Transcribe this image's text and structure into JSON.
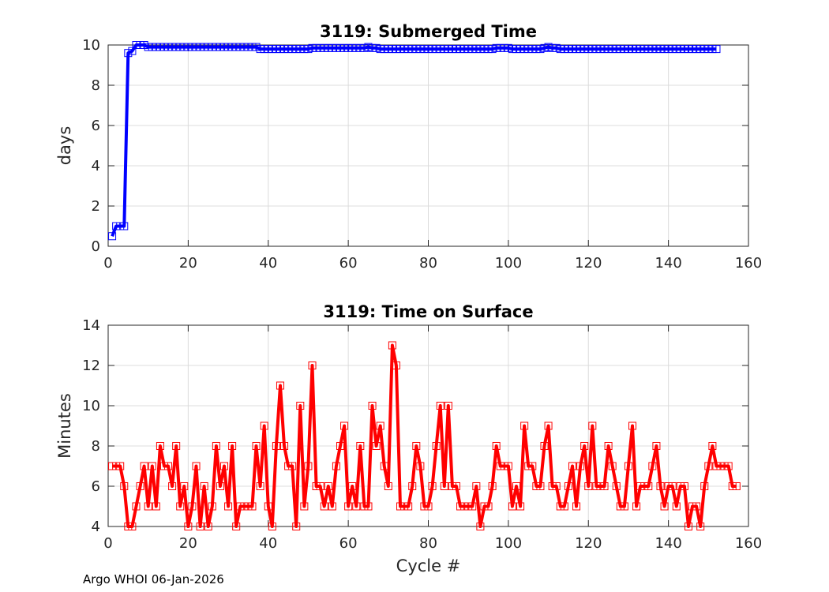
{
  "footer": "Argo WHOI 06-Jan-2026",
  "chart_data": [
    {
      "type": "line",
      "title": "3119: Submerged Time",
      "xlabel": "",
      "ylabel": "days",
      "xlim": [
        0,
        160
      ],
      "ylim": [
        0,
        10
      ],
      "xticks": [
        0,
        20,
        40,
        60,
        80,
        100,
        120,
        140,
        160
      ],
      "yticks": [
        0,
        2,
        4,
        6,
        8,
        10
      ],
      "grid": true,
      "color": "#0000ff",
      "marker": "square",
      "series": [
        {
          "name": "Submerged Time",
          "values": [
            0.5,
            1.0,
            1.0,
            1.0,
            9.6,
            9.7,
            10.0,
            10.0,
            10.0,
            9.9,
            9.9,
            9.9,
            9.9,
            9.9,
            9.9,
            9.9,
            9.9,
            9.9,
            9.9,
            9.9,
            9.9,
            9.9,
            9.9,
            9.9,
            9.9,
            9.9,
            9.9,
            9.9,
            9.9,
            9.9,
            9.9,
            9.9,
            9.9,
            9.9,
            9.9,
            9.9,
            9.9,
            9.8,
            9.8,
            9.8,
            9.8,
            9.8,
            9.8,
            9.8,
            9.8,
            9.8,
            9.8,
            9.8,
            9.8,
            9.8,
            9.85,
            9.85,
            9.85,
            9.85,
            9.85,
            9.85,
            9.85,
            9.85,
            9.85,
            9.85,
            9.85,
            9.85,
            9.85,
            9.85,
            9.9,
            9.85,
            9.85,
            9.8,
            9.8,
            9.8,
            9.8,
            9.8,
            9.8,
            9.8,
            9.8,
            9.8,
            9.8,
            9.8,
            9.8,
            9.8,
            9.8,
            9.8,
            9.8,
            9.8,
            9.8,
            9.8,
            9.8,
            9.8,
            9.8,
            9.8,
            9.8,
            9.8,
            9.8,
            9.8,
            9.8,
            9.8,
            9.85,
            9.85,
            9.85,
            9.85,
            9.8,
            9.8,
            9.8,
            9.8,
            9.8,
            9.8,
            9.8,
            9.8,
            9.85,
            9.9,
            9.85,
            9.85,
            9.8,
            9.8,
            9.8,
            9.8,
            9.8,
            9.8,
            9.8,
            9.8,
            9.8,
            9.8,
            9.8,
            9.8,
            9.8,
            9.8,
            9.8,
            9.8,
            9.8,
            9.8,
            9.8,
            9.8,
            9.8,
            9.8,
            9.8,
            9.8,
            9.8,
            9.8,
            9.8,
            9.8,
            9.8,
            9.8,
            9.8,
            9.8,
            9.8,
            9.8,
            9.8,
            9.8,
            9.8,
            9.8,
            9.8,
            9.8
          ]
        }
      ]
    },
    {
      "type": "line",
      "title": "3119: Time on Surface",
      "xlabel": "Cycle #",
      "ylabel": "Minutes",
      "xlim": [
        0,
        160
      ],
      "ylim": [
        4,
        14
      ],
      "xticks": [
        0,
        20,
        40,
        60,
        80,
        100,
        120,
        140,
        160
      ],
      "yticks": [
        4,
        6,
        8,
        10,
        12,
        14
      ],
      "grid": true,
      "color": "#ff0000",
      "marker": "square",
      "series": [
        {
          "name": "Time on Surface",
          "values": [
            7,
            7,
            7,
            6,
            4,
            4,
            5,
            6,
            7,
            5,
            7,
            5,
            8,
            7,
            7,
            6,
            8,
            5,
            6,
            4,
            5,
            7,
            4,
            6,
            4,
            5,
            8,
            6,
            7,
            5,
            8,
            4,
            5,
            5,
            5,
            5,
            8,
            6,
            9,
            5,
            4,
            8,
            11,
            8,
            7,
            7,
            4,
            10,
            5,
            7,
            12,
            6,
            6,
            5,
            6,
            5,
            7,
            8,
            9,
            5,
            6,
            5,
            8,
            5,
            5,
            10,
            8,
            9,
            7,
            6,
            13,
            12,
            5,
            5,
            5,
            6,
            8,
            7,
            5,
            5,
            6,
            8,
            10,
            6,
            10,
            6,
            6,
            5,
            5,
            5,
            5,
            6,
            4,
            5,
            5,
            6,
            8,
            7,
            7,
            7,
            5,
            6,
            5,
            9,
            7,
            7,
            6,
            6,
            8,
            9,
            6,
            6,
            5,
            5,
            6,
            7,
            5,
            7,
            8,
            6,
            9,
            6,
            6,
            6,
            8,
            7,
            6,
            5,
            5,
            7,
            9,
            5,
            6,
            6,
            6,
            7,
            8,
            6,
            5,
            6,
            6,
            5,
            6,
            6,
            4,
            5,
            5,
            4,
            6,
            7,
            8,
            7,
            7,
            7,
            7,
            6,
            6
          ]
        }
      ]
    }
  ]
}
